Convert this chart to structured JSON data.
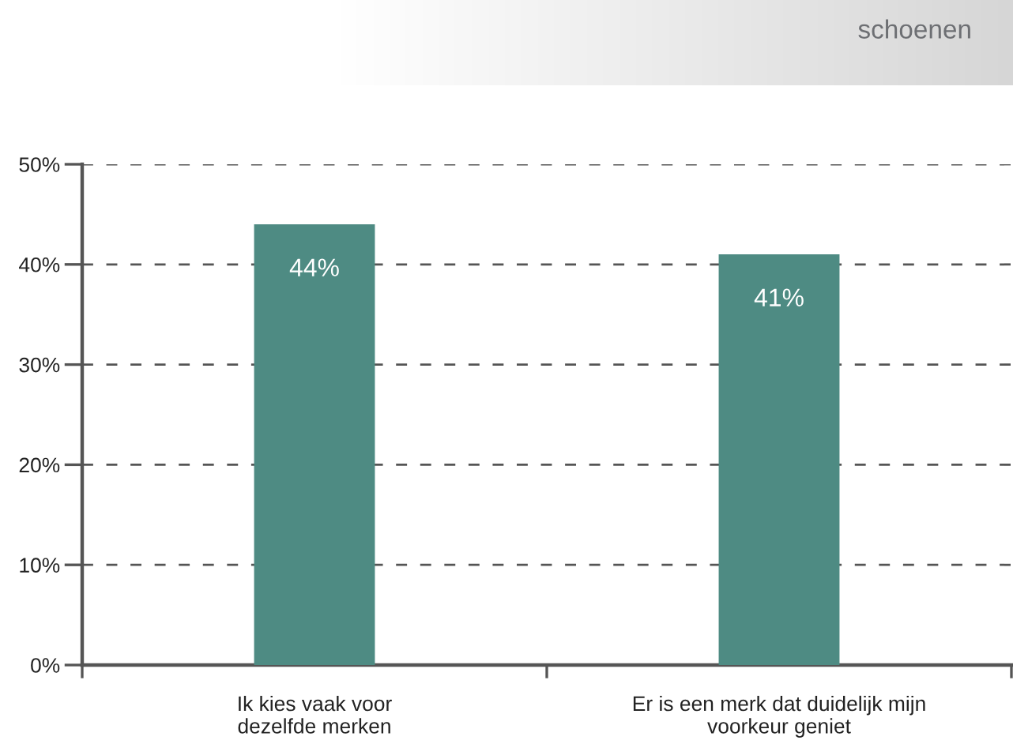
{
  "chart_data": {
    "type": "bar",
    "title": "schoenen",
    "categories": [
      "Ik kies vaak voor\ndezelfde merken",
      "Er is een merk dat duidelijk mijn\nvoorkeur geniet"
    ],
    "values": [
      44,
      41
    ],
    "value_labels": [
      "44%",
      "41%"
    ],
    "color": "#4e8b83",
    "ylim": [
      0,
      50
    ],
    "yticks": [
      {
        "value": 0,
        "label": "0%"
      },
      {
        "value": 10,
        "label": "10%"
      },
      {
        "value": 20,
        "label": "20%"
      },
      {
        "value": 30,
        "label": "30%"
      },
      {
        "value": 40,
        "label": "40%"
      },
      {
        "value": 50,
        "label": "50%"
      }
    ],
    "grid": "y"
  }
}
